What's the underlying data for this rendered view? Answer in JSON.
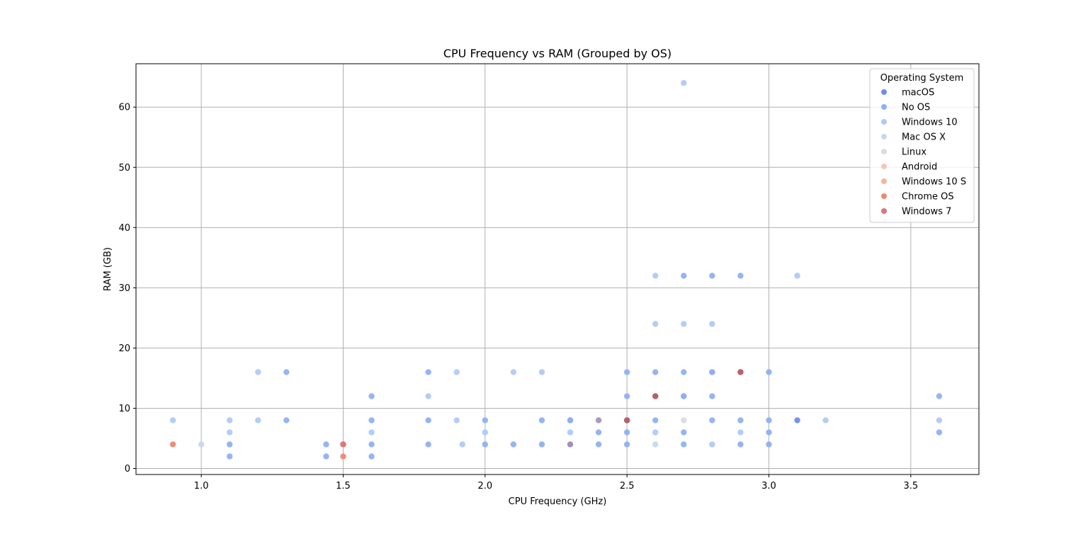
{
  "chart_data": {
    "type": "scatter",
    "title": "CPU Frequency vs RAM (Grouped by OS)",
    "xlabel": "CPU Frequency (GHz)",
    "ylabel": "RAM (GB)",
    "xlim": [
      0.77,
      3.74
    ],
    "ylim": [
      -1.0,
      67.2
    ],
    "xticks": [
      1.0,
      1.5,
      2.0,
      2.5,
      3.0,
      3.5
    ],
    "xtick_labels": [
      "1.0",
      "1.5",
      "2.0",
      "2.5",
      "3.0",
      "3.5"
    ],
    "yticks": [
      0,
      10,
      20,
      30,
      40,
      50,
      60
    ],
    "ytick_labels": [
      "0",
      "10",
      "20",
      "30",
      "40",
      "50",
      "60"
    ],
    "grid": true,
    "legend": {
      "title": "Operating System",
      "placement": "top-right"
    },
    "series": [
      {
        "name": "macOS",
        "color": "#6e8ee8",
        "points": [
          [
            3.1,
            8
          ],
          [
            2.7,
            12
          ],
          [
            2.8,
            16
          ],
          [
            2.3,
            8
          ]
        ]
      },
      {
        "name": "No OS",
        "color": "#8fb0f5",
        "points": [
          [
            1.1,
            2
          ],
          [
            1.1,
            4
          ],
          [
            1.3,
            8
          ],
          [
            1.3,
            16
          ],
          [
            1.44,
            2
          ],
          [
            1.44,
            4
          ],
          [
            1.6,
            2
          ],
          [
            1.6,
            4
          ],
          [
            1.6,
            8
          ],
          [
            1.6,
            12
          ],
          [
            1.8,
            4
          ],
          [
            1.8,
            8
          ],
          [
            1.8,
            16
          ],
          [
            2.0,
            4
          ],
          [
            2.0,
            8
          ],
          [
            2.1,
            4
          ],
          [
            2.2,
            4
          ],
          [
            2.2,
            8
          ],
          [
            2.3,
            8
          ],
          [
            2.4,
            4
          ],
          [
            2.4,
            6
          ],
          [
            2.5,
            4
          ],
          [
            2.5,
            6
          ],
          [
            2.5,
            8
          ],
          [
            2.5,
            12
          ],
          [
            2.5,
            16
          ],
          [
            2.6,
            8
          ],
          [
            2.6,
            16
          ],
          [
            2.7,
            4
          ],
          [
            2.7,
            6
          ],
          [
            2.7,
            12
          ],
          [
            2.7,
            16
          ],
          [
            2.7,
            32
          ],
          [
            2.8,
            8
          ],
          [
            2.8,
            12
          ],
          [
            2.8,
            16
          ],
          [
            2.8,
            32
          ],
          [
            2.9,
            4
          ],
          [
            2.9,
            8
          ],
          [
            2.9,
            32
          ],
          [
            3.0,
            4
          ],
          [
            3.0,
            6
          ],
          [
            3.0,
            8
          ],
          [
            3.0,
            16
          ],
          [
            3.6,
            6
          ],
          [
            3.6,
            12
          ]
        ]
      },
      {
        "name": "Windows 10",
        "color": "#b0c9f8",
        "points": [
          [
            0.9,
            8
          ],
          [
            1.1,
            6
          ],
          [
            1.1,
            8
          ],
          [
            1.2,
            8
          ],
          [
            1.2,
            16
          ],
          [
            1.6,
            6
          ],
          [
            1.8,
            12
          ],
          [
            1.9,
            8
          ],
          [
            1.9,
            16
          ],
          [
            1.92,
            4
          ],
          [
            2.0,
            6
          ],
          [
            2.1,
            16
          ],
          [
            2.2,
            16
          ],
          [
            2.3,
            6
          ],
          [
            2.6,
            6
          ],
          [
            2.6,
            24
          ],
          [
            2.6,
            32
          ],
          [
            2.7,
            24
          ],
          [
            2.7,
            64
          ],
          [
            2.8,
            4
          ],
          [
            2.8,
            24
          ],
          [
            2.9,
            6
          ],
          [
            3.1,
            32
          ],
          [
            3.2,
            8
          ],
          [
            3.6,
            8
          ]
        ]
      },
      {
        "name": "Mac OS X",
        "color": "#c9d8f0",
        "points": [
          [
            1.0,
            4
          ],
          [
            2.6,
            4
          ]
        ]
      },
      {
        "name": "Linux",
        "color": "#dddcdc",
        "points": [
          [
            2.7,
            8
          ]
        ]
      },
      {
        "name": "Android",
        "color": "#f4c9b4",
        "points": []
      },
      {
        "name": "Windows 10 S",
        "color": "#f4b69c",
        "points": []
      },
      {
        "name": "Chrome OS",
        "color": "#ea8a72",
        "points": [
          [
            0.9,
            4
          ],
          [
            1.5,
            2
          ],
          [
            1.5,
            4
          ]
        ]
      },
      {
        "name": "Windows 7",
        "color": "#dc7677",
        "points": [
          [
            1.5,
            4
          ],
          [
            2.5,
            8
          ],
          [
            2.6,
            12
          ],
          [
            2.9,
            16
          ]
        ]
      }
    ],
    "overlap_points": [
      {
        "x": 2.3,
        "y": 4,
        "color": "#9f93b5"
      },
      {
        "x": 2.4,
        "y": 8,
        "color": "#a79ac0"
      },
      {
        "x": 2.5,
        "y": 8,
        "color": "#b5606e"
      },
      {
        "x": 2.6,
        "y": 12,
        "color": "#b5606e"
      },
      {
        "x": 2.9,
        "y": 16,
        "color": "#c05f6c"
      }
    ]
  }
}
